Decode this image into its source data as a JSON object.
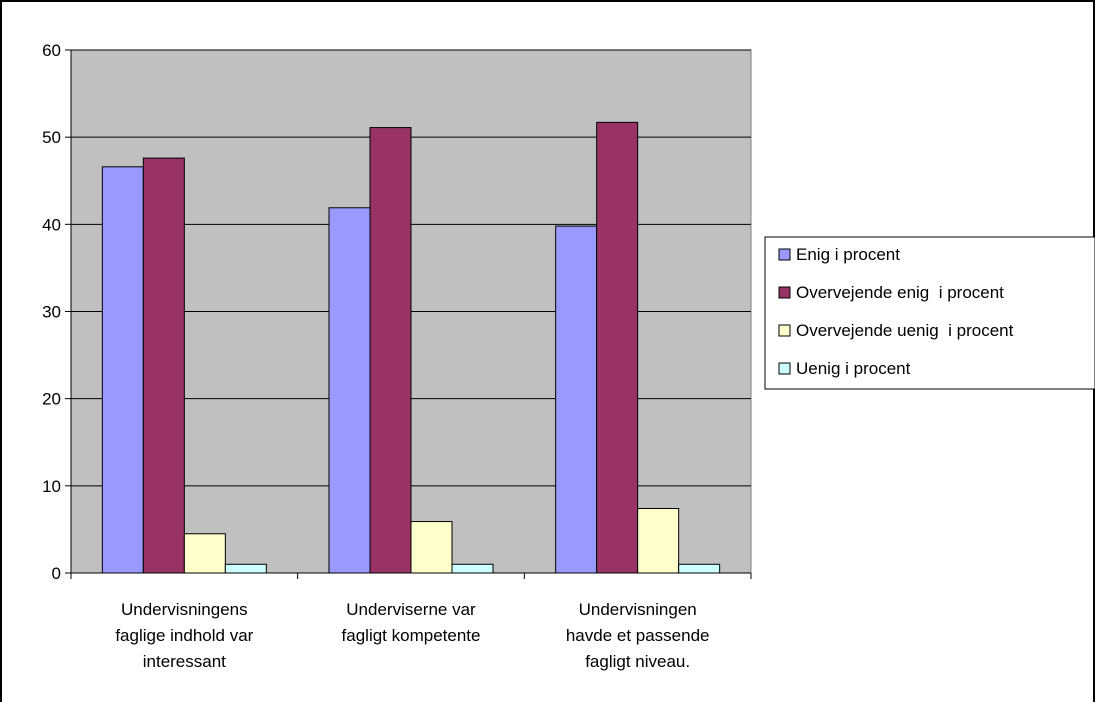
{
  "chart_data": {
    "type": "bar",
    "title": "",
    "xlabel": "",
    "ylabel": "",
    "ylim": [
      0,
      60
    ],
    "yticks": [
      0,
      10,
      20,
      30,
      40,
      50,
      60
    ],
    "grid": true,
    "legend_position": "right",
    "categories": [
      [
        "Undervisningens",
        "faglige indhold var",
        "interessant"
      ],
      [
        "Underviserne var",
        "fagligt kompetente"
      ],
      [
        "Undervisningen",
        "havde et passende",
        "fagligt niveau."
      ]
    ],
    "series": [
      {
        "name": "Enig i procent",
        "color": "#9999ff",
        "values": [
          46.6,
          41.9,
          39.8
        ]
      },
      {
        "name": "Overvejende enig  i procent",
        "color": "#993366",
        "values": [
          47.6,
          51.1,
          51.7
        ]
      },
      {
        "name": "Overvejende uenig  i procent",
        "color": "#ffffcc",
        "values": [
          4.5,
          5.9,
          7.4
        ]
      },
      {
        "name": "Uenig i procent",
        "color": "#ccffff",
        "values": [
          1.0,
          1.0,
          1.0
        ]
      }
    ],
    "plot_background": "#c0c0c0"
  }
}
